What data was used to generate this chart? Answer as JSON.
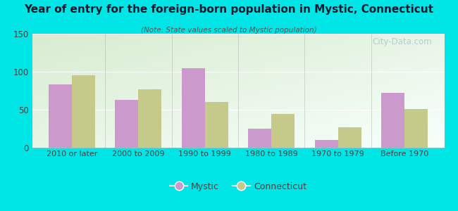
{
  "title": "Year of entry for the foreign-born population in Mystic, Connecticut",
  "subtitle": "(Note: State values scaled to Mystic population)",
  "categories": [
    "2010 or later",
    "2000 to 2009",
    "1990 to 1999",
    "1980 to 1989",
    "1970 to 1979",
    "Before 1970"
  ],
  "mystic_values": [
    83,
    63,
    105,
    25,
    10,
    72
  ],
  "connecticut_values": [
    95,
    77,
    60,
    44,
    27,
    51
  ],
  "mystic_color": "#cc99cc",
  "connecticut_color": "#c5c98a",
  "background_color": "#00e5e5",
  "plot_bg_color1": "#d8ecd0",
  "plot_bg_color2": "#f8fffc",
  "ylim": [
    0,
    150
  ],
  "yticks": [
    0,
    50,
    100,
    150
  ],
  "bar_width": 0.35,
  "legend_mystic": "Mystic",
  "legend_connecticut": "Connecticut",
  "watermark": "City-Data.com"
}
